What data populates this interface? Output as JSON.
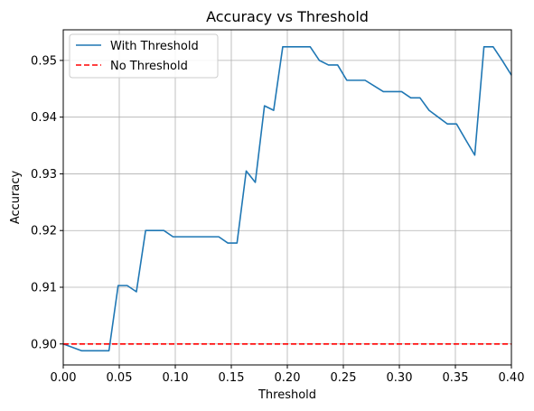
{
  "chart_data": {
    "type": "line",
    "title": "Accuracy vs Threshold",
    "xlabel": "Threshold",
    "ylabel": "Accuracy",
    "xlim": [
      0.0,
      0.4
    ],
    "ylim": [
      0.8963,
      0.9554
    ],
    "grid": true,
    "legend_position": "top-left",
    "x_ticks": [
      0.0,
      0.05,
      0.1,
      0.15,
      0.2,
      0.25,
      0.3,
      0.35,
      0.4
    ],
    "x_tick_labels": [
      "0.00",
      "0.05",
      "0.10",
      "0.15",
      "0.20",
      "0.25",
      "0.30",
      "0.35",
      "0.40"
    ],
    "y_ticks": [
      0.9,
      0.91,
      0.92,
      0.93,
      0.94,
      0.95
    ],
    "y_tick_labels": [
      "0.90",
      "0.91",
      "0.92",
      "0.93",
      "0.94",
      "0.95"
    ],
    "series": [
      {
        "name": "With Threshold",
        "color": "#1f77b4",
        "style": "solid",
        "x": [
          0.0,
          0.0163,
          0.0245,
          0.0327,
          0.0408,
          0.049,
          0.0571,
          0.0653,
          0.0735,
          0.0816,
          0.0898,
          0.098,
          0.1061,
          0.1143,
          0.1224,
          0.1306,
          0.1388,
          0.1469,
          0.1551,
          0.1633,
          0.1714,
          0.1796,
          0.1878,
          0.1959,
          0.2041,
          0.2122,
          0.2204,
          0.2286,
          0.2367,
          0.2449,
          0.2531,
          0.2612,
          0.2694,
          0.2776,
          0.2857,
          0.2939,
          0.302,
          0.3102,
          0.3184,
          0.3265,
          0.3347,
          0.3429,
          0.351,
          0.3592,
          0.3673,
          0.3755,
          0.3837,
          0.3918,
          0.4
        ],
        "values": [
          0.9,
          0.8988,
          0.8988,
          0.8988,
          0.8988,
          0.9103,
          0.9103,
          0.9092,
          0.92,
          0.92,
          0.92,
          0.9189,
          0.9189,
          0.9189,
          0.9189,
          0.9189,
          0.9189,
          0.9178,
          0.9178,
          0.9305,
          0.9285,
          0.942,
          0.9412,
          0.9524,
          0.9524,
          0.9524,
          0.9524,
          0.95,
          0.9492,
          0.9492,
          0.9465,
          0.9465,
          0.9465,
          0.9455,
          0.9445,
          0.9445,
          0.9445,
          0.9434,
          0.9434,
          0.9412,
          0.94,
          0.9388,
          0.9388,
          0.936,
          0.9333,
          0.9524,
          0.9524,
          0.95,
          0.9474
        ]
      },
      {
        "name": "No Threshold",
        "color": "#ff0000",
        "style": "dashed",
        "x": [
          0.0,
          0.4
        ],
        "values": [
          0.9,
          0.9
        ]
      }
    ]
  }
}
